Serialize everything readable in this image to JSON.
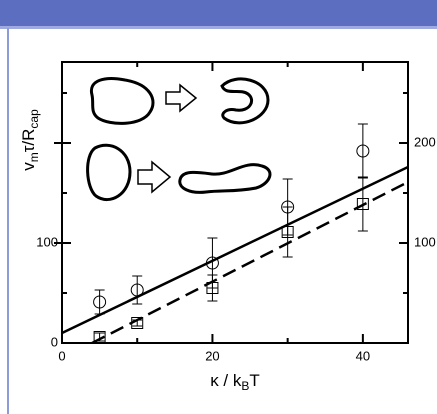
{
  "chart_data": {
    "type": "scatter",
    "xlabel_parts": [
      "κ / k",
      "B",
      "T"
    ],
    "ylabel_parts": [
      "v",
      "m",
      "τ/R",
      "cap"
    ],
    "xlim": [
      0,
      46
    ],
    "xticks": [
      0,
      20,
      40
    ],
    "xminor": [
      10,
      30
    ],
    "ylim": [
      0,
      281
    ],
    "yticks": [
      0,
      100
    ],
    "yminor": [
      50,
      150,
      250
    ],
    "y2lim": [
      0,
      281
    ],
    "y2ticks": [
      100,
      200
    ],
    "series": [
      {
        "marker": "circle",
        "color": "#000000",
        "x": [
          5,
          10,
          20,
          30,
          40
        ],
        "values": [
          41,
          53,
          80,
          136,
          192
        ],
        "errors": [
          12,
          14,
          25,
          28,
          27
        ]
      },
      {
        "marker": "square",
        "color": "#000000",
        "x": [
          5,
          10,
          20,
          30,
          40
        ],
        "values": [
          6,
          20,
          55,
          111,
          139
        ],
        "errors": [
          4,
          3,
          13,
          25,
          27
        ]
      }
    ],
    "lines": [
      {
        "dash": false,
        "color": "#000000",
        "x": [
          0,
          46
        ],
        "values": [
          10,
          176
        ]
      },
      {
        "dash": true,
        "color": "#000000",
        "x": [
          4,
          46
        ],
        "values": [
          0,
          161
        ]
      }
    ]
  }
}
